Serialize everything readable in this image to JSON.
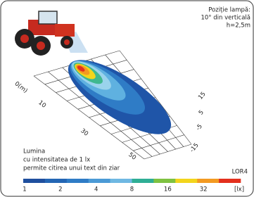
{
  "lamp_position": {
    "title": "Poziție lampă:",
    "angle": "10° din verticală",
    "height": "h=2,5m"
  },
  "distance_labels": [
    "0(m)",
    "10",
    "30",
    "50"
  ],
  "lateral_labels": [
    "15",
    "5",
    "-5",
    "-15"
  ],
  "caption": [
    "Lumina",
    "cu intensitatea de 1 lx",
    "permite citirea unui text din ziar"
  ],
  "model": "LOR4",
  "scale_labels": [
    "1",
    "2",
    "4",
    "8",
    "16",
    "32",
    "[lx]"
  ]
}
